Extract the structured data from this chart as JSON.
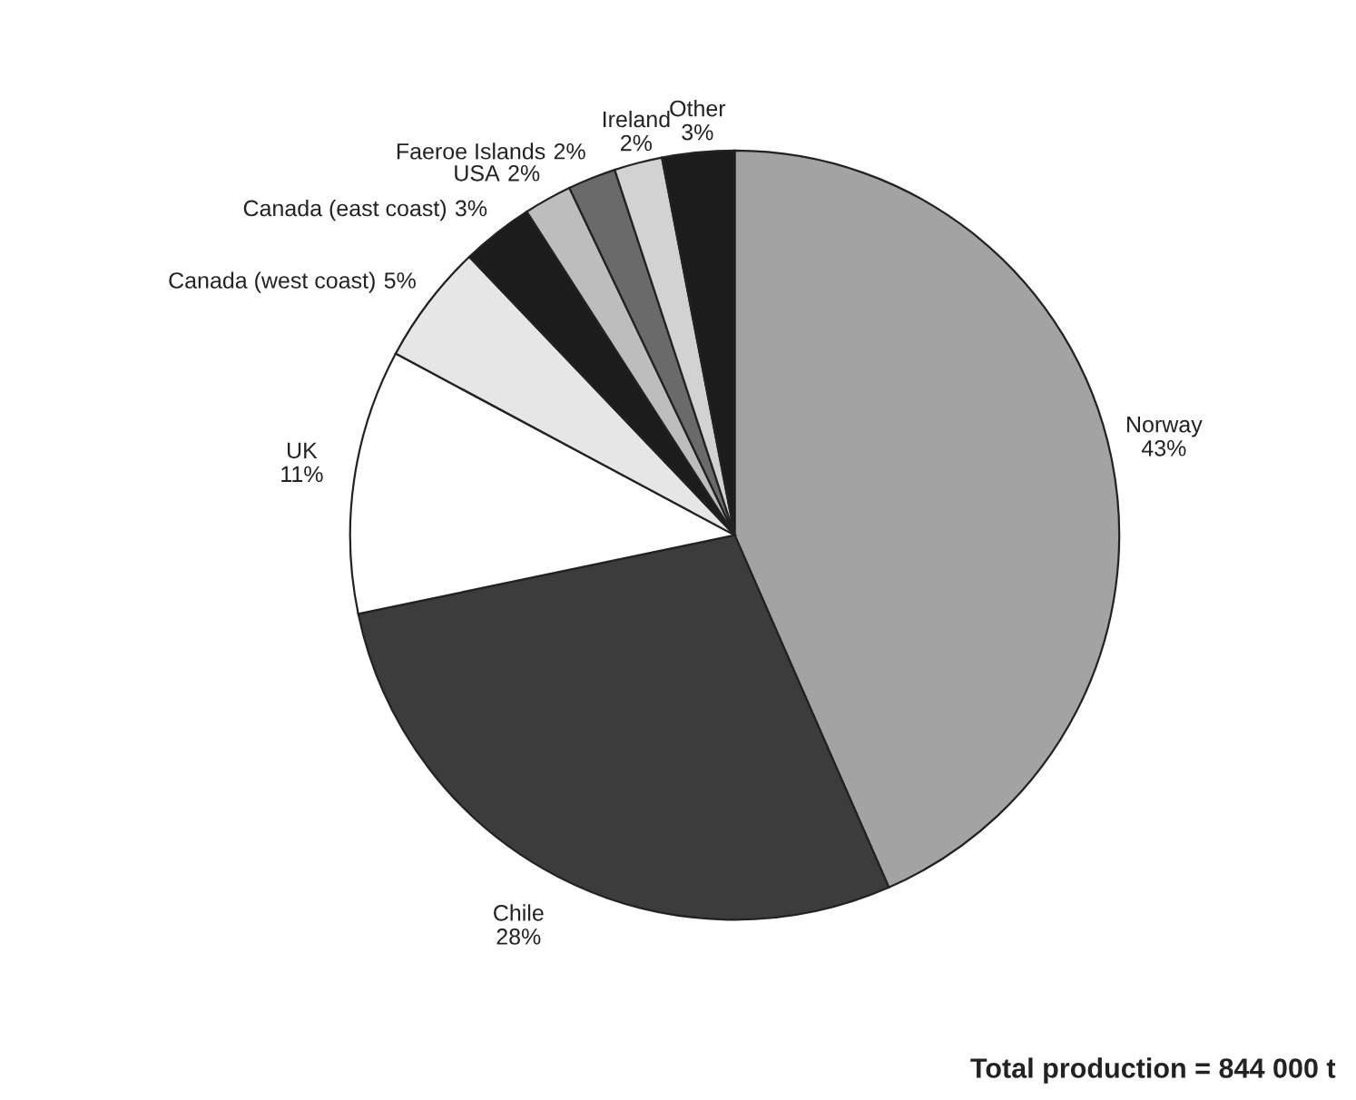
{
  "chart_data": {
    "type": "pie",
    "categories": [
      "Norway",
      "Chile",
      "UK",
      "Canada (west coast)",
      "Canada (east coast)",
      "USA",
      "Faeroe Islands",
      "Ireland",
      "Other"
    ],
    "values": [
      43,
      28,
      11,
      5,
      3,
      2,
      2,
      2,
      3
    ],
    "value_labels": [
      "43%",
      "28%",
      "11%",
      "5%",
      "3%",
      "2%",
      "2%",
      "2%",
      "3%"
    ],
    "colors": [
      "#a3a3a3",
      "#3c3c3c",
      "#ffffff",
      "#e6e6e6",
      "#1c1c1c",
      "#bdbdbd",
      "#6a6a6a",
      "#d2d2d2",
      "#1c1c1c"
    ],
    "annotations": [
      "Total production = 844 000 t"
    ]
  }
}
